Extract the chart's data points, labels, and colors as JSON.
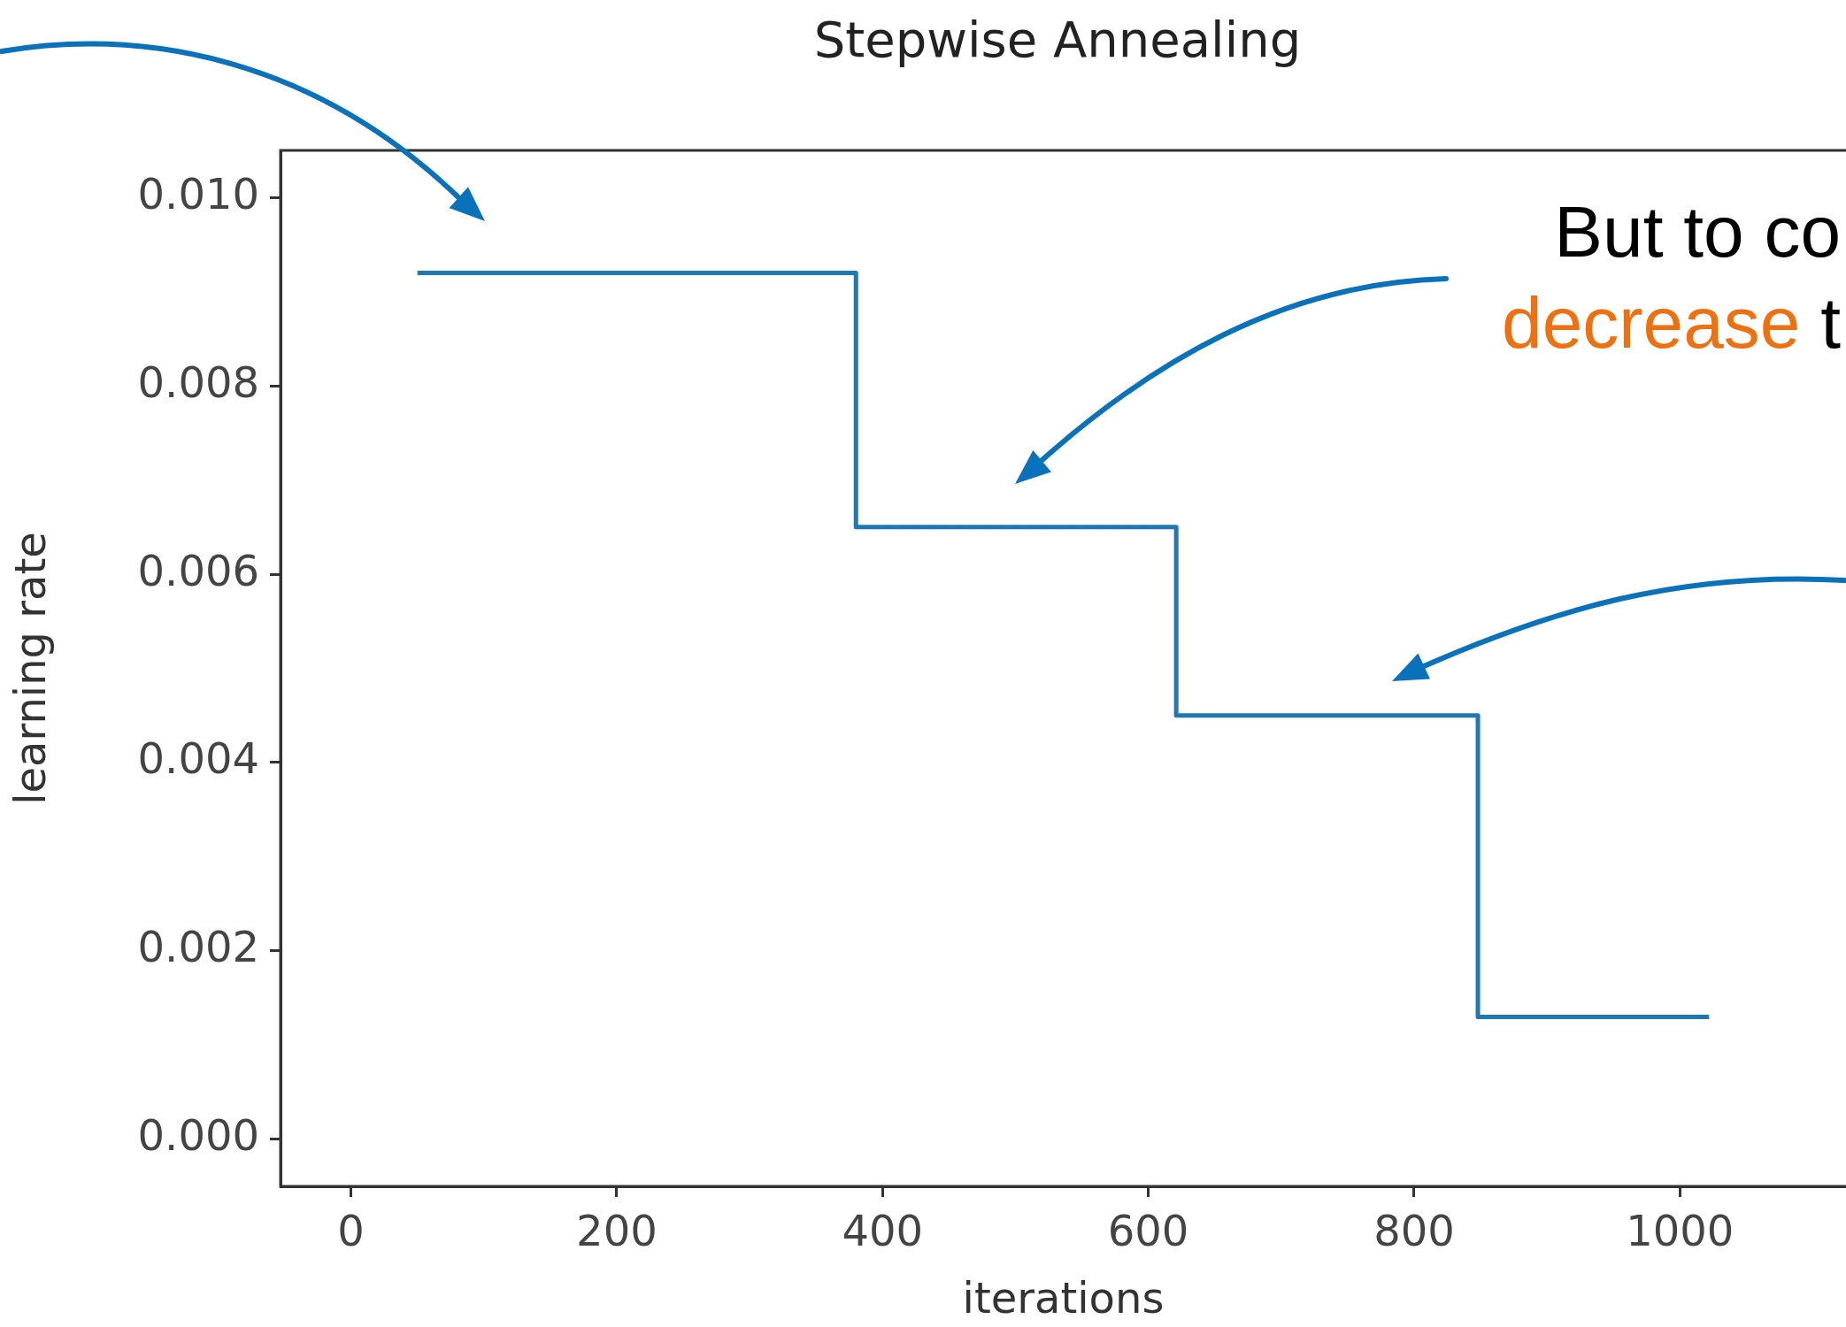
{
  "chart_data": {
    "type": "step",
    "title": "Stepwise Annealing",
    "xlabel": "iterations",
    "ylabel": "learning rate",
    "x": [
      50,
      380,
      621,
      848,
      1022
    ],
    "series": [
      {
        "color": "#1f77b4",
        "values": [
          0.0092,
          0.0065,
          0.0045,
          0.0013,
          0.0013
        ]
      }
    ],
    "xlim": [
      -53,
      1125
    ],
    "xticks": [
      0,
      200,
      400,
      600,
      800,
      1000
    ],
    "ylim": [
      -0.0005,
      0.0105
    ],
    "yticks": [
      {
        "value": 0,
        "label": "0.000"
      },
      {
        "value": 0.002,
        "label": "0.002"
      },
      {
        "value": 0.004,
        "label": "0.004"
      },
      {
        "value": 0.006,
        "label": "0.006"
      },
      {
        "value": 0.008,
        "label": "0.008"
      },
      {
        "value": 0.01,
        "label": "0.010"
      }
    ],
    "grid": false,
    "legend": false,
    "annotations": [
      "But to co",
      "decrease t"
    ]
  }
}
